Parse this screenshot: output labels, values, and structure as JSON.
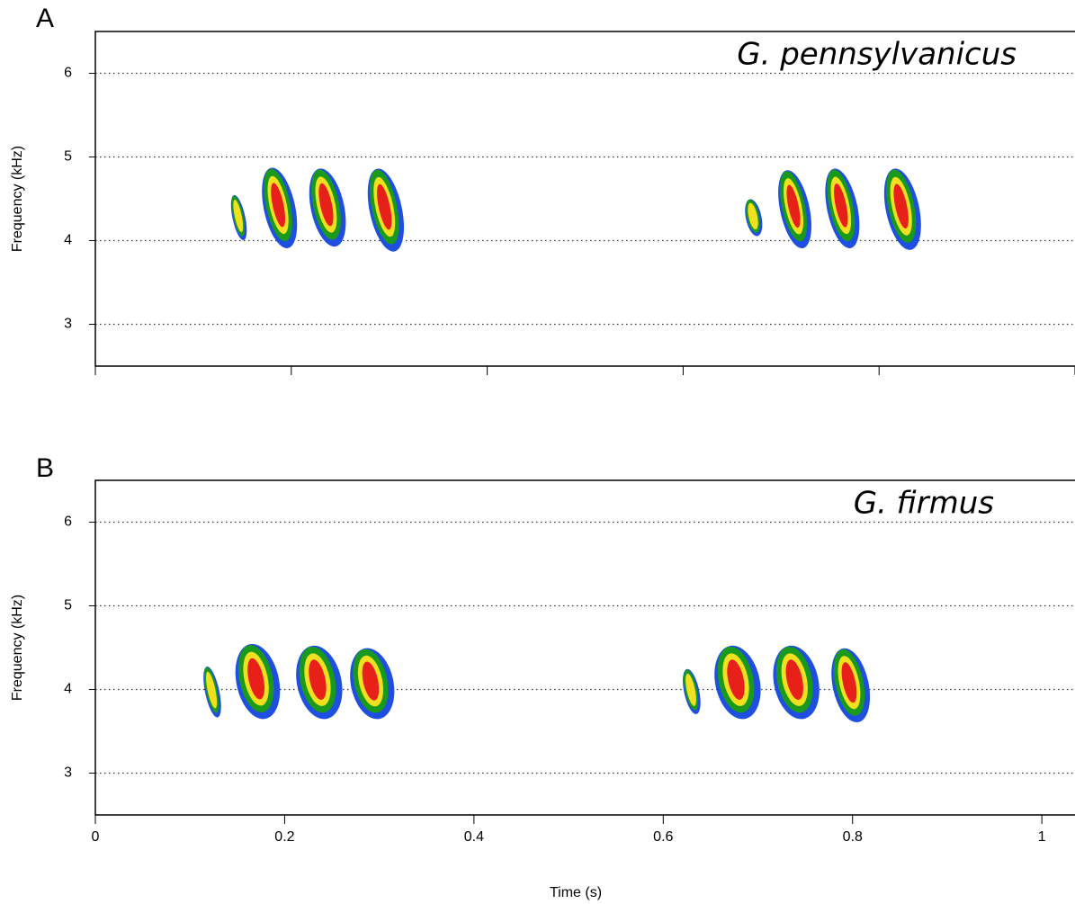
{
  "chart_data": [
    {
      "type": "spectrogram",
      "panel": "A",
      "title": "G. pennsylvanicus",
      "ylabel": "Frequency (kHz)",
      "xlim": [
        0,
        1.0
      ],
      "xticks": [
        0,
        0.2,
        0.4,
        0.6,
        0.8,
        1
      ],
      "xticklabels": false,
      "ylim": [
        2.5,
        6.5
      ],
      "yticks": [
        3,
        4,
        5,
        6
      ],
      "grid": true,
      "colors": [
        "#1f4fe0",
        "#1a9a1a",
        "#f0e020",
        "#e8201a"
      ],
      "pulses": [
        {
          "time": [
            0.14,
            0.153
          ],
          "freq": [
            4.0,
            4.55
          ]
        },
        {
          "time": [
            0.172,
            0.204
          ],
          "freq": [
            3.9,
            4.88
          ]
        },
        {
          "time": [
            0.22,
            0.254
          ],
          "freq": [
            3.92,
            4.87
          ]
        },
        {
          "time": [
            0.28,
            0.313
          ],
          "freq": [
            3.86,
            4.87
          ]
        },
        {
          "time": [
            0.664,
            0.68
          ],
          "freq": [
            4.05,
            4.5
          ]
        },
        {
          "time": [
            0.699,
            0.729
          ],
          "freq": [
            3.9,
            4.85
          ]
        },
        {
          "time": [
            0.747,
            0.778
          ],
          "freq": [
            3.9,
            4.87
          ]
        },
        {
          "time": [
            0.807,
            0.841
          ],
          "freq": [
            3.88,
            4.87
          ]
        }
      ]
    },
    {
      "type": "spectrogram",
      "panel": "B",
      "title": "G. firmus",
      "ylabel": "Frequency (kHz)",
      "xlabel": "Time (s)",
      "xlim": [
        0,
        1.035
      ],
      "xticks": [
        0,
        0.2,
        0.4,
        0.6,
        0.8,
        1
      ],
      "xticklabels": true,
      "ylim": [
        2.5,
        6.5
      ],
      "yticks": [
        3,
        4,
        5,
        6
      ],
      "grid": true,
      "colors": [
        "#1f4fe0",
        "#1a9a1a",
        "#f0e020",
        "#e8201a"
      ],
      "pulses": [
        {
          "time": [
            0.116,
            0.131
          ],
          "freq": [
            3.66,
            4.28
          ]
        },
        {
          "time": [
            0.149,
            0.194
          ],
          "freq": [
            3.64,
            4.55
          ]
        },
        {
          "time": [
            0.213,
            0.26
          ],
          "freq": [
            3.64,
            4.53
          ]
        },
        {
          "time": [
            0.27,
            0.315
          ],
          "freq": [
            3.64,
            4.5
          ]
        },
        {
          "time": [
            0.622,
            0.638
          ],
          "freq": [
            3.7,
            4.25
          ]
        },
        {
          "time": [
            0.655,
            0.702
          ],
          "freq": [
            3.64,
            4.53
          ]
        },
        {
          "time": [
            0.717,
            0.764
          ],
          "freq": [
            3.64,
            4.53
          ]
        },
        {
          "time": [
            0.779,
            0.817
          ],
          "freq": [
            3.6,
            4.5
          ]
        }
      ]
    }
  ]
}
